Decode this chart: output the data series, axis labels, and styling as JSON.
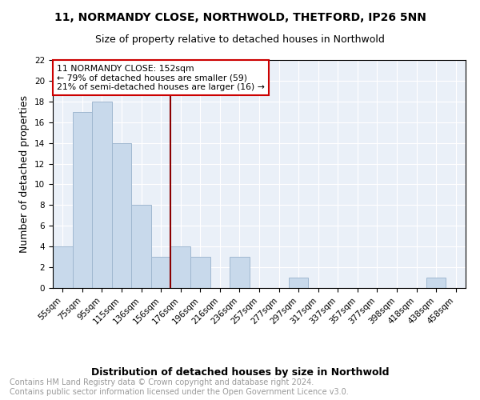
{
  "title1": "11, NORMANDY CLOSE, NORTHWOLD, THETFORD, IP26 5NN",
  "title2": "Size of property relative to detached houses in Northwold",
  "xlabel": "Distribution of detached houses by size in Northwold",
  "ylabel": "Number of detached properties",
  "categories": [
    "55sqm",
    "75sqm",
    "95sqm",
    "115sqm",
    "136sqm",
    "156sqm",
    "176sqm",
    "196sqm",
    "216sqm",
    "236sqm",
    "257sqm",
    "277sqm",
    "297sqm",
    "317sqm",
    "337sqm",
    "357sqm",
    "377sqm",
    "398sqm",
    "418sqm",
    "438sqm",
    "458sqm"
  ],
  "values": [
    4,
    17,
    18,
    14,
    8,
    3,
    4,
    3,
    0,
    3,
    0,
    0,
    1,
    0,
    0,
    0,
    0,
    0,
    0,
    1,
    0
  ],
  "bar_color": "#c8d9eb",
  "bar_edge_color": "#a0b8d0",
  "vline_x_idx": 5,
  "vline_color": "#8b0000",
  "annotation_text": "11 NORMANDY CLOSE: 152sqm\n← 79% of detached houses are smaller (59)\n21% of semi-detached houses are larger (16) →",
  "annotation_box_color": "#ffffff",
  "annotation_box_edge": "#cc0000",
  "ylim": [
    0,
    22
  ],
  "yticks": [
    0,
    2,
    4,
    6,
    8,
    10,
    12,
    14,
    16,
    18,
    20,
    22
  ],
  "background_color": "#eaf0f8",
  "footer_text": "Contains HM Land Registry data © Crown copyright and database right 2024.\nContains public sector information licensed under the Open Government Licence v3.0.",
  "title1_fontsize": 10,
  "title2_fontsize": 9,
  "xlabel_fontsize": 9,
  "ylabel_fontsize": 9,
  "footer_fontsize": 7,
  "tick_fontsize": 7.5
}
